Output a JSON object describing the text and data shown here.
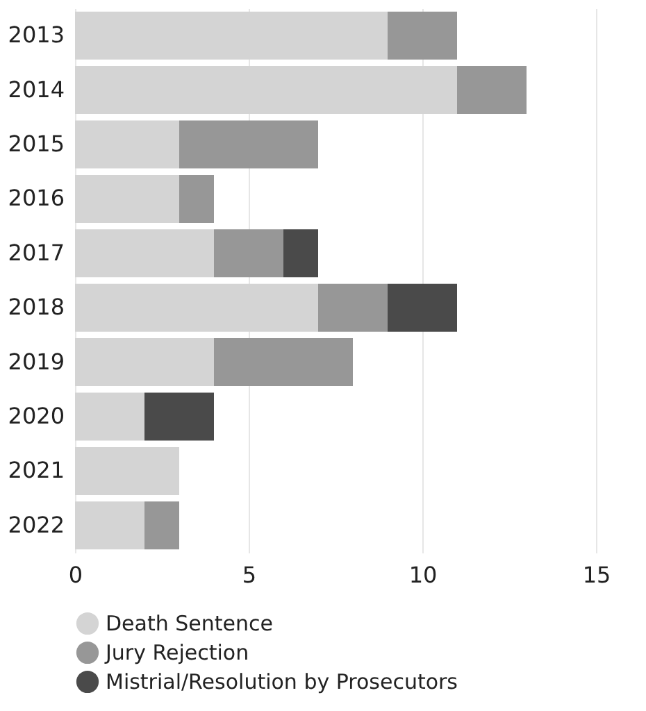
{
  "chart_data": {
    "type": "bar",
    "orientation": "horizontal",
    "stacked": true,
    "categories": [
      "2013",
      "2014",
      "2015",
      "2016",
      "2017",
      "2018",
      "2019",
      "2020",
      "2021",
      "2022"
    ],
    "series": [
      {
        "name": "Death Sentence",
        "color": "#d4d4d4",
        "values": [
          9,
          11,
          3,
          3,
          4,
          7,
          4,
          2,
          3,
          2
        ]
      },
      {
        "name": "Jury Rejection",
        "color": "#979797",
        "values": [
          2,
          2,
          4,
          1,
          2,
          2,
          4,
          null,
          null,
          1
        ]
      },
      {
        "name": "Mistrial/Resolution by Prosecutors",
        "color": "#4a4a4a",
        "values": [
          null,
          null,
          null,
          null,
          1,
          2,
          null,
          2,
          null,
          null
        ]
      }
    ],
    "xlim": [
      0,
      15
    ],
    "xticks": [
      0,
      5,
      10,
      15
    ],
    "grid": "x",
    "legend": "bottom"
  }
}
